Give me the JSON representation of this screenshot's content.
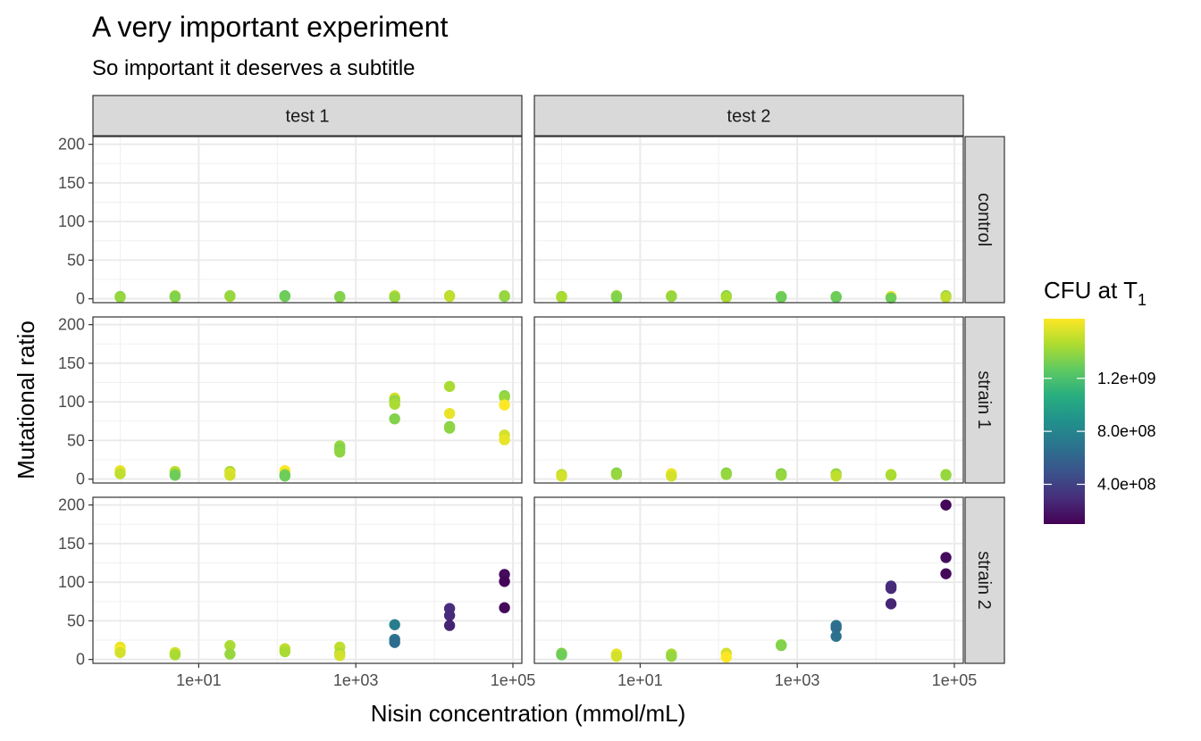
{
  "chart_data": {
    "type": "scatter",
    "title": "A very important experiment",
    "subtitle": "So important it deserves a subtitle",
    "xlabel": "Nisin concentration (mmol/mL)",
    "ylabel": "Mutational ratio",
    "x_scale": "log10",
    "xlim": [
      0.45,
      130000
    ],
    "ylim": [
      -5,
      210
    ],
    "x_tick_values": [
      10,
      1000,
      100000
    ],
    "x_tick_labels": [
      "1e+01",
      "1e+03",
      "1e+05"
    ],
    "y_ticks": [
      0,
      50,
      100,
      150,
      200
    ],
    "grid": true,
    "facet_columns": [
      "test 1",
      "test 2"
    ],
    "facet_rows": [
      "control",
      "strain 1",
      "strain 2"
    ],
    "legend": {
      "title": "CFU at  T",
      "title_subscript": "1",
      "placement": "right",
      "range": [
        100000000,
        1650000000
      ],
      "ticks": [
        400000000,
        800000000,
        1200000000
      ],
      "tick_labels": [
        "4.0e+08",
        "8.0e+08",
        "1.2e+09"
      ],
      "colormap": "viridis"
    },
    "panels": [
      {
        "column": "test 1",
        "row": "control",
        "points": [
          {
            "x": 1,
            "y": 3,
            "cfu": 1350000000
          },
          {
            "x": 1,
            "y": 2,
            "cfu": 1400000000
          },
          {
            "x": 5,
            "y": 4,
            "cfu": 1500000000
          },
          {
            "x": 5,
            "y": 2,
            "cfu": 1450000000
          },
          {
            "x": 5,
            "y": 3,
            "cfu": 1350000000
          },
          {
            "x": 25,
            "y": 3,
            "cfu": 1500000000
          },
          {
            "x": 25,
            "y": 4,
            "cfu": 1400000000
          },
          {
            "x": 125,
            "y": 4,
            "cfu": 1250000000
          },
          {
            "x": 125,
            "y": 3,
            "cfu": 1300000000
          },
          {
            "x": 625,
            "y": 2,
            "cfu": 1400000000
          },
          {
            "x": 625,
            "y": 3,
            "cfu": 1350000000
          },
          {
            "x": 3125,
            "y": 4,
            "cfu": 1500000000
          },
          {
            "x": 3125,
            "y": 2,
            "cfu": 1400000000
          },
          {
            "x": 15625,
            "y": 4,
            "cfu": 1450000000
          },
          {
            "x": 15625,
            "y": 3,
            "cfu": 1500000000
          },
          {
            "x": 78125,
            "y": 3,
            "cfu": 1350000000
          },
          {
            "x": 78125,
            "y": 4,
            "cfu": 1400000000
          }
        ]
      },
      {
        "column": "test 2",
        "row": "control",
        "points": [
          {
            "x": 1,
            "y": 3,
            "cfu": 1400000000
          },
          {
            "x": 1,
            "y": 2,
            "cfu": 1450000000
          },
          {
            "x": 5,
            "y": 4,
            "cfu": 1400000000
          },
          {
            "x": 5,
            "y": 2,
            "cfu": 1350000000
          },
          {
            "x": 25,
            "y": 4,
            "cfu": 1500000000
          },
          {
            "x": 25,
            "y": 3,
            "cfu": 1400000000
          },
          {
            "x": 125,
            "y": 4,
            "cfu": 1350000000
          },
          {
            "x": 125,
            "y": 2,
            "cfu": 1450000000
          },
          {
            "x": 625,
            "y": 3,
            "cfu": 1350000000
          },
          {
            "x": 625,
            "y": 2,
            "cfu": 1300000000
          },
          {
            "x": 3125,
            "y": 2,
            "cfu": 1250000000
          },
          {
            "x": 3125,
            "y": 3,
            "cfu": 1300000000
          },
          {
            "x": 15625,
            "y": 3,
            "cfu": 1600000000
          },
          {
            "x": 15625,
            "y": 1,
            "cfu": 1300000000
          },
          {
            "x": 78125,
            "y": 4,
            "cfu": 1400000000
          },
          {
            "x": 78125,
            "y": 2,
            "cfu": 1500000000
          }
        ]
      },
      {
        "column": "test 1",
        "row": "strain 1",
        "points": [
          {
            "x": 1,
            "y": 11,
            "cfu": 1600000000
          },
          {
            "x": 1,
            "y": 7,
            "cfu": 1500000000
          },
          {
            "x": 5,
            "y": 10,
            "cfu": 1500000000
          },
          {
            "x": 5,
            "y": 7,
            "cfu": 1400000000
          },
          {
            "x": 5,
            "y": 5,
            "cfu": 1300000000
          },
          {
            "x": 25,
            "y": 10,
            "cfu": 1450000000
          },
          {
            "x": 25,
            "y": 7,
            "cfu": 1600000000
          },
          {
            "x": 25,
            "y": 5,
            "cfu": 1550000000
          },
          {
            "x": 125,
            "y": 11,
            "cfu": 1650000000
          },
          {
            "x": 125,
            "y": 6,
            "cfu": 1350000000
          },
          {
            "x": 125,
            "y": 4,
            "cfu": 1300000000
          },
          {
            "x": 625,
            "y": 43,
            "cfu": 1400000000
          },
          {
            "x": 625,
            "y": 39,
            "cfu": 1350000000
          },
          {
            "x": 625,
            "y": 35,
            "cfu": 1380000000
          },
          {
            "x": 3125,
            "y": 105,
            "cfu": 1550000000
          },
          {
            "x": 3125,
            "y": 102,
            "cfu": 1400000000
          },
          {
            "x": 3125,
            "y": 97,
            "cfu": 1450000000
          },
          {
            "x": 3125,
            "y": 78,
            "cfu": 1350000000
          },
          {
            "x": 15625,
            "y": 120,
            "cfu": 1450000000
          },
          {
            "x": 15625,
            "y": 85,
            "cfu": 1600000000
          },
          {
            "x": 15625,
            "y": 68,
            "cfu": 1350000000
          },
          {
            "x": 15625,
            "y": 66,
            "cfu": 1380000000
          },
          {
            "x": 78125,
            "y": 108,
            "cfu": 1350000000
          },
          {
            "x": 78125,
            "y": 106,
            "cfu": 1400000000
          },
          {
            "x": 78125,
            "y": 96,
            "cfu": 1650000000
          },
          {
            "x": 78125,
            "y": 57,
            "cfu": 1550000000
          },
          {
            "x": 78125,
            "y": 51,
            "cfu": 1600000000
          }
        ]
      },
      {
        "column": "test 2",
        "row": "strain 1",
        "points": [
          {
            "x": 1,
            "y": 6,
            "cfu": 1500000000
          },
          {
            "x": 1,
            "y": 4,
            "cfu": 1550000000
          },
          {
            "x": 5,
            "y": 8,
            "cfu": 1350000000
          },
          {
            "x": 5,
            "y": 6,
            "cfu": 1400000000
          },
          {
            "x": 25,
            "y": 7,
            "cfu": 1600000000
          },
          {
            "x": 25,
            "y": 5,
            "cfu": 1650000000
          },
          {
            "x": 25,
            "y": 4,
            "cfu": 1550000000
          },
          {
            "x": 125,
            "y": 8,
            "cfu": 1350000000
          },
          {
            "x": 125,
            "y": 6,
            "cfu": 1400000000
          },
          {
            "x": 625,
            "y": 7,
            "cfu": 1350000000
          },
          {
            "x": 625,
            "y": 5,
            "cfu": 1400000000
          },
          {
            "x": 3125,
            "y": 7,
            "cfu": 1400000000
          },
          {
            "x": 3125,
            "y": 4,
            "cfu": 1500000000
          },
          {
            "x": 15625,
            "y": 6,
            "cfu": 1500000000
          },
          {
            "x": 15625,
            "y": 5,
            "cfu": 1450000000
          },
          {
            "x": 78125,
            "y": 6,
            "cfu": 1450000000
          },
          {
            "x": 78125,
            "y": 5,
            "cfu": 1400000000
          }
        ]
      },
      {
        "column": "test 1",
        "row": "strain 2",
        "points": [
          {
            "x": 1,
            "y": 16,
            "cfu": 1600000000
          },
          {
            "x": 1,
            "y": 12,
            "cfu": 1650000000
          },
          {
            "x": 1,
            "y": 9,
            "cfu": 1550000000
          },
          {
            "x": 5,
            "y": 9,
            "cfu": 1550000000
          },
          {
            "x": 5,
            "y": 6,
            "cfu": 1450000000
          },
          {
            "x": 25,
            "y": 18,
            "cfu": 1450000000
          },
          {
            "x": 25,
            "y": 7,
            "cfu": 1400000000
          },
          {
            "x": 125,
            "y": 14,
            "cfu": 1500000000
          },
          {
            "x": 125,
            "y": 10,
            "cfu": 1450000000
          },
          {
            "x": 625,
            "y": 16,
            "cfu": 1500000000
          },
          {
            "x": 625,
            "y": 8,
            "cfu": 1450000000
          },
          {
            "x": 625,
            "y": 5,
            "cfu": 1550000000
          },
          {
            "x": 3125,
            "y": 45,
            "cfu": 750000000
          },
          {
            "x": 3125,
            "y": 26,
            "cfu": 700000000
          },
          {
            "x": 3125,
            "y": 22,
            "cfu": 650000000
          },
          {
            "x": 15625,
            "y": 66,
            "cfu": 300000000
          },
          {
            "x": 15625,
            "y": 57,
            "cfu": 280000000
          },
          {
            "x": 15625,
            "y": 44,
            "cfu": 250000000
          },
          {
            "x": 78125,
            "y": 110,
            "cfu": 150000000
          },
          {
            "x": 78125,
            "y": 101,
            "cfu": 120000000
          },
          {
            "x": 78125,
            "y": 67,
            "cfu": 130000000
          }
        ]
      },
      {
        "column": "test 2",
        "row": "strain 2",
        "points": [
          {
            "x": 1,
            "y": 8,
            "cfu": 1350000000
          },
          {
            "x": 1,
            "y": 6,
            "cfu": 1300000000
          },
          {
            "x": 5,
            "y": 7,
            "cfu": 1600000000
          },
          {
            "x": 5,
            "y": 4,
            "cfu": 1550000000
          },
          {
            "x": 25,
            "y": 7,
            "cfu": 1450000000
          },
          {
            "x": 25,
            "y": 4,
            "cfu": 1400000000
          },
          {
            "x": 125,
            "y": 8,
            "cfu": 1550000000
          },
          {
            "x": 125,
            "y": 3,
            "cfu": 1650000000
          },
          {
            "x": 625,
            "y": 19,
            "cfu": 1400000000
          },
          {
            "x": 625,
            "y": 18,
            "cfu": 1350000000
          },
          {
            "x": 3125,
            "y": 44,
            "cfu": 700000000
          },
          {
            "x": 3125,
            "y": 41,
            "cfu": 650000000
          },
          {
            "x": 3125,
            "y": 30,
            "cfu": 680000000
          },
          {
            "x": 15625,
            "y": 95,
            "cfu": 300000000
          },
          {
            "x": 15625,
            "y": 92,
            "cfu": 280000000
          },
          {
            "x": 15625,
            "y": 72,
            "cfu": 260000000
          },
          {
            "x": 78125,
            "y": 200,
            "cfu": 120000000
          },
          {
            "x": 78125,
            "y": 132,
            "cfu": 150000000
          },
          {
            "x": 78125,
            "y": 111,
            "cfu": 130000000
          }
        ]
      }
    ]
  }
}
